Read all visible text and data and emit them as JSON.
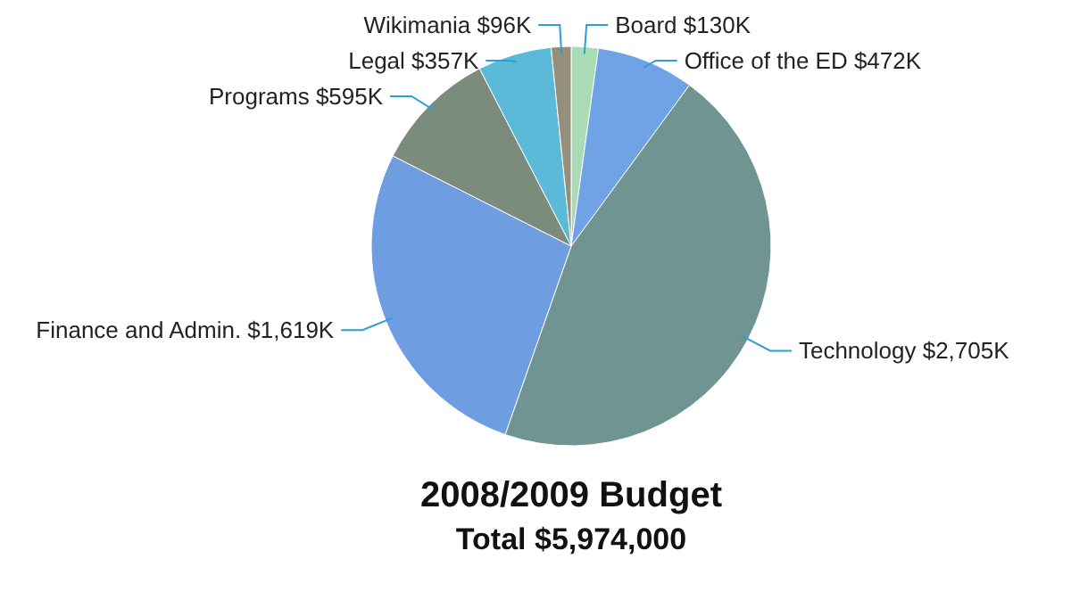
{
  "chart_data": {
    "type": "pie",
    "title": "2008/2009 Budget",
    "subtitle": "Total $5,974,000",
    "categories": [
      "Board",
      "Office of the ED",
      "Technology",
      "Finance and Admin.",
      "Programs",
      "Legal",
      "Wikimania"
    ],
    "values": [
      130,
      472,
      2705,
      1619,
      595,
      357,
      96
    ],
    "value_labels": [
      "$130K",
      "$472K",
      "$2,705K",
      "$1,619K",
      "$595K",
      "$357K",
      "$96K"
    ],
    "colors": [
      "#a9dcb4",
      "#6fa3e6",
      "#6f9492",
      "#6f9de2",
      "#7c8c7c",
      "#5cbad9",
      "#948e7c"
    ]
  }
}
